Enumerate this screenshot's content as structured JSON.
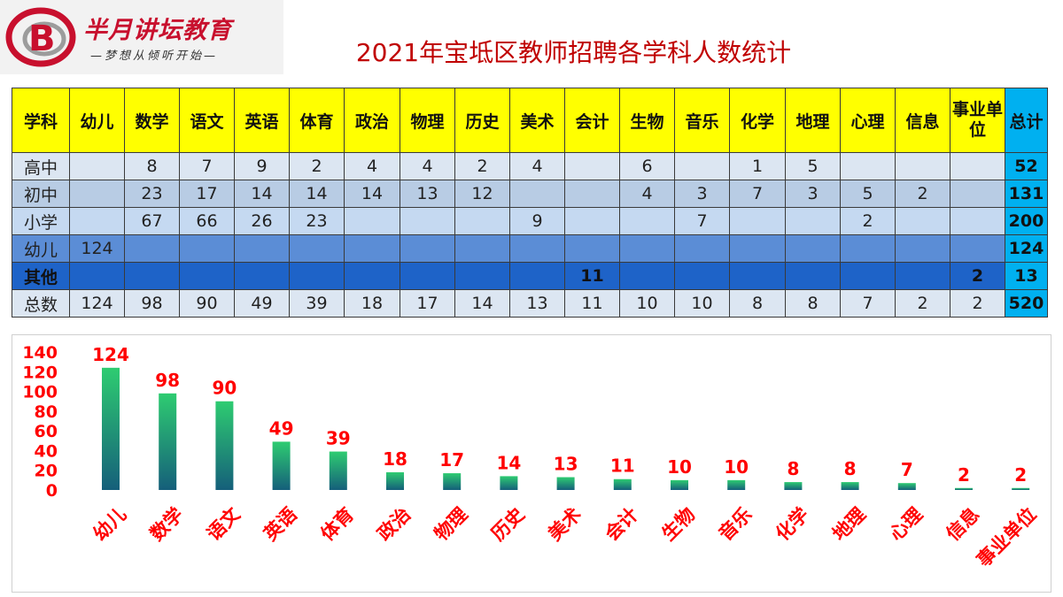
{
  "logo": {
    "name": "半月讲坛教育",
    "slogan": "—梦想从倾听开始—",
    "emblem_color": "#c8102e"
  },
  "title": "2021年宝坻区教师招聘各学科人数统计",
  "table": {
    "headers": [
      "学科",
      "幼儿",
      "数学",
      "语文",
      "英语",
      "体育",
      "政治",
      "物理",
      "历史",
      "美术",
      "会计",
      "生物",
      "音乐",
      "化学",
      "地理",
      "心理",
      "信息",
      "事业单位",
      "总计"
    ],
    "rows": [
      {
        "label": "高中",
        "cells": [
          "",
          "8",
          "7",
          "9",
          "2",
          "4",
          "4",
          "2",
          "4",
          "",
          "6",
          "",
          "1",
          "5",
          "",
          "",
          ""
        ],
        "total": "52"
      },
      {
        "label": "初中",
        "cells": [
          "",
          "23",
          "17",
          "14",
          "14",
          "14",
          "13",
          "12",
          "",
          "",
          "4",
          "3",
          "7",
          "3",
          "5",
          "2",
          ""
        ],
        "total": "131"
      },
      {
        "label": "小学",
        "cells": [
          "",
          "67",
          "66",
          "26",
          "23",
          "",
          "",
          "",
          "9",
          "",
          "",
          "7",
          "",
          "",
          "2",
          "",
          ""
        ],
        "total": "200"
      },
      {
        "label": "幼儿",
        "cells": [
          "124",
          "",
          "",
          "",
          "",
          "",
          "",
          "",
          "",
          "",
          "",
          "",
          "",
          "",
          "",
          "",
          ""
        ],
        "total": "124"
      },
      {
        "label": "其他",
        "cells": [
          "",
          "",
          "",
          "",
          "",
          "",
          "",
          "",
          "",
          "11",
          "",
          "",
          "",
          "",
          "",
          "",
          "2"
        ],
        "total": "13"
      },
      {
        "label": "总数",
        "cells": [
          "124",
          "98",
          "90",
          "49",
          "39",
          "18",
          "17",
          "14",
          "13",
          "11",
          "10",
          "10",
          "8",
          "8",
          "7",
          "2",
          "2"
        ],
        "total": "520"
      }
    ]
  },
  "chart_data": {
    "type": "bar",
    "categories": [
      "幼儿",
      "数学",
      "语文",
      "英语",
      "体育",
      "政治",
      "物理",
      "历史",
      "美术",
      "会计",
      "生物",
      "音乐",
      "化学",
      "地理",
      "心理",
      "信息",
      "事业单位"
    ],
    "values": [
      124,
      98,
      90,
      49,
      39,
      18,
      17,
      14,
      13,
      11,
      10,
      10,
      8,
      8,
      7,
      2,
      2
    ],
    "ylim": [
      0,
      140
    ],
    "yticks": [
      0,
      20,
      40,
      60,
      80,
      100,
      120,
      140
    ],
    "grid": false,
    "legend": "none",
    "bar_gradient_top": "#2ecc71",
    "bar_gradient_bottom": "#155f7a",
    "label_color": "#ff0000"
  }
}
